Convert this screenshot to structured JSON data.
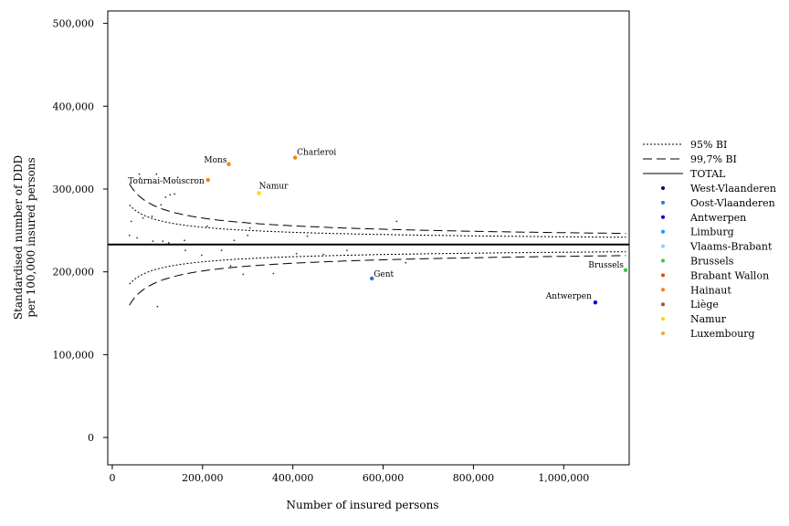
{
  "chart_data": {
    "type": "scatter",
    "title": "",
    "xlabel": "Number of insured persons",
    "ylabel_lines": [
      "Standardised number of DDD",
      "per 100,000 insured persons"
    ],
    "xlim": [
      -10000,
      1145000
    ],
    "ylim": [
      -33000,
      515000
    ],
    "x_ticks": [
      0,
      200000,
      400000,
      600000,
      800000,
      1000000
    ],
    "x_tick_labels": [
      "0",
      "200,000",
      "400,000",
      "600,000",
      "800,000",
      "1,000,000"
    ],
    "y_ticks": [
      0,
      100000,
      200000,
      300000,
      400000,
      500000
    ],
    "y_tick_labels": [
      "0",
      "100,000",
      "200,000",
      "300,000",
      "400,000",
      "500,000"
    ],
    "grid": false,
    "legend_position": "right",
    "total": 233000,
    "limits": [
      {
        "name": "95% BI",
        "dash": "dotted",
        "z": 1.96,
        "k": 22700000
      },
      {
        "name": "99,7% BI",
        "dash": "dashed",
        "z": 3,
        "k": 22700000
      }
    ],
    "total_line_name": "TOTAL",
    "legend_entries": [
      {
        "name": "West-Vlaanderen",
        "color": "#00007d"
      },
      {
        "name": "Oost-Vlaanderen",
        "color": "#3a6ee0"
      },
      {
        "name": "Antwerpen",
        "color": "#0000d8"
      },
      {
        "name": "Limburg",
        "color": "#1e90ff"
      },
      {
        "name": "Vlaams-Brabant",
        "color": "#87cefa"
      },
      {
        "name": "Brussels",
        "color": "#2ecc40"
      },
      {
        "name": "Brabant Wallon",
        "color": "#d35400"
      },
      {
        "name": "Hainaut",
        "color": "#f28500"
      },
      {
        "name": "Liège",
        "color": "#a0522d"
      },
      {
        "name": "Namur",
        "color": "#ffd700"
      },
      {
        "name": "Luxembourg",
        "color": "#f4a431"
      }
    ],
    "labeled_points": [
      {
        "label": "Charleroi",
        "x": 405000,
        "y": 338000,
        "color": "#f28500",
        "anchor": "start",
        "dx": 2,
        "dy": -3
      },
      {
        "label": "Mons",
        "x": 258000,
        "y": 330000,
        "color": "#f28500",
        "anchor": "end",
        "dx": -2,
        "dy": -2
      },
      {
        "label": "Tournai-Mouscron",
        "x": 212000,
        "y": 311000,
        "color": "#f28500",
        "anchor": "end",
        "dx": -4,
        "dy": 4
      },
      {
        "label": "Namur",
        "x": 325000,
        "y": 295000,
        "color": "#ffd700",
        "anchor": "start",
        "dx": 0,
        "dy": -5
      },
      {
        "label": "Gent",
        "x": 575000,
        "y": 192000,
        "color": "#3a6ee0",
        "anchor": "start",
        "dx": 2,
        "dy": -2
      },
      {
        "label": "Brussels",
        "x": 1137000,
        "y": 202000,
        "color": "#2ecc40",
        "anchor": "end",
        "dx": -2,
        "dy": -3
      },
      {
        "label": "Antwerpen",
        "x": 1070000,
        "y": 163000,
        "color": "#0000d8",
        "anchor": "end",
        "dx": -4,
        "dy": -4
      }
    ],
    "small_points": [
      [
        42000,
        261000
      ],
      [
        38000,
        244000
      ],
      [
        55000,
        241000
      ],
      [
        60000,
        318000
      ],
      [
        62000,
        313000
      ],
      [
        68000,
        265000
      ],
      [
        88000,
        267000
      ],
      [
        90000,
        237000
      ],
      [
        98000,
        318000
      ],
      [
        100000,
        158000
      ],
      [
        108000,
        281000
      ],
      [
        112000,
        237000
      ],
      [
        118000,
        290000
      ],
      [
        125000,
        235000
      ],
      [
        128000,
        293000
      ],
      [
        138000,
        294000
      ],
      [
        145000,
        314000
      ],
      [
        160000,
        238000
      ],
      [
        162000,
        226000
      ],
      [
        198000,
        220000
      ],
      [
        210000,
        255000
      ],
      [
        242000,
        226000
      ],
      [
        262000,
        207000
      ],
      [
        270000,
        238000
      ],
      [
        290000,
        197000
      ],
      [
        300000,
        244000
      ],
      [
        305000,
        253000
      ],
      [
        357000,
        198000
      ],
      [
        432000,
        243000
      ],
      [
        408000,
        222000
      ],
      [
        468000,
        221000
      ],
      [
        520000,
        226000
      ],
      [
        630000,
        261000
      ],
      [
        650000,
        211000
      ]
    ]
  }
}
